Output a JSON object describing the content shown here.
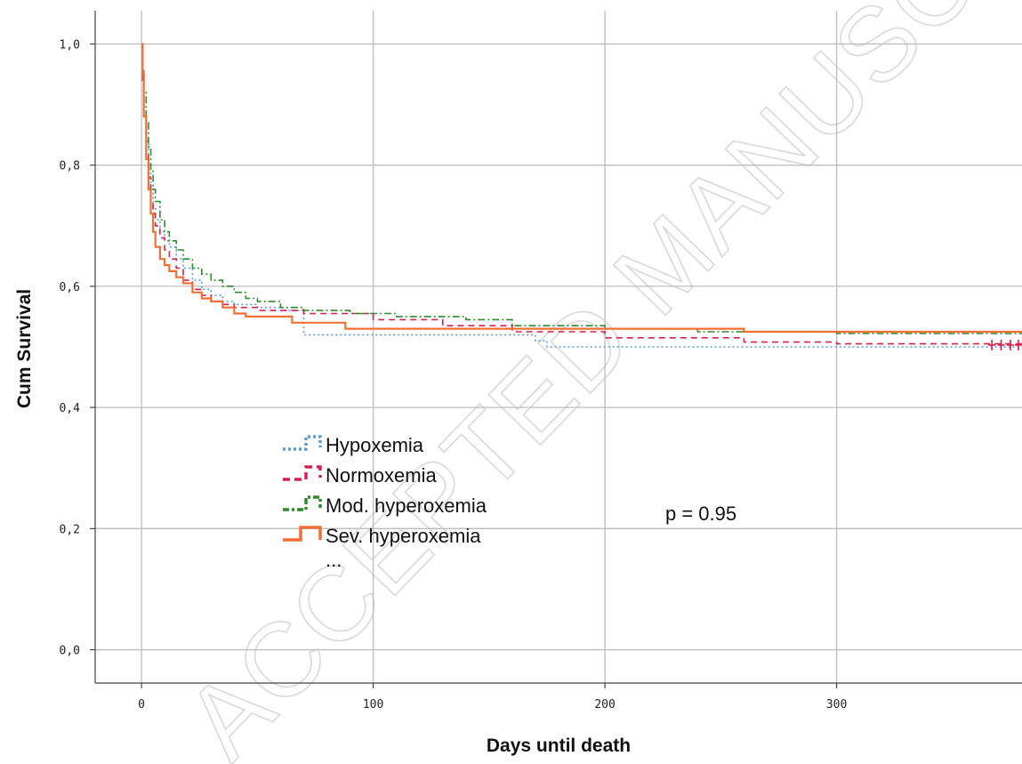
{
  "chart_data": {
    "type": "line",
    "title": "",
    "xlabel": "Days until death",
    "ylabel": "Cum Survival",
    "xlim": [
      -20,
      380
    ],
    "ylim": [
      -0.055,
      1.055
    ],
    "x_ticks": [
      0,
      100,
      200,
      300
    ],
    "x_tick_labels": [
      "0",
      "100",
      "200",
      "300"
    ],
    "y_ticks": [
      0.0,
      0.2,
      0.4,
      0.6,
      0.8,
      1.0
    ],
    "y_tick_labels": [
      "0,0",
      "0,2",
      "0,4",
      "0,6",
      "0,8",
      "1,0"
    ],
    "grid": true,
    "legend_position": "center-left",
    "legend_extra": "...",
    "annotation": "p = 0.95",
    "watermark": "ACCEPTED MANUSCRIPT",
    "series": [
      {
        "name": "Hypoxemia",
        "color": "#5b9bd5",
        "dash": "2,3",
        "width": 1.6,
        "censor": false,
        "points": [
          [
            0,
            1.0
          ],
          [
            0.5,
            0.95
          ],
          [
            1,
            0.89
          ],
          [
            2,
            0.84
          ],
          [
            3,
            0.8
          ],
          [
            4,
            0.76
          ],
          [
            5,
            0.73
          ],
          [
            6,
            0.71
          ],
          [
            8,
            0.69
          ],
          [
            10,
            0.675
          ],
          [
            12,
            0.665
          ],
          [
            15,
            0.645
          ],
          [
            18,
            0.63
          ],
          [
            22,
            0.61
          ],
          [
            26,
            0.595
          ],
          [
            30,
            0.585
          ],
          [
            35,
            0.575
          ],
          [
            40,
            0.57
          ],
          [
            50,
            0.565
          ],
          [
            60,
            0.56
          ],
          [
            70,
            0.52
          ],
          [
            100,
            0.52
          ],
          [
            165,
            0.52
          ],
          [
            170,
            0.51
          ],
          [
            175,
            0.5
          ],
          [
            250,
            0.5
          ],
          [
            320,
            0.5
          ],
          [
            380,
            0.5
          ]
        ]
      },
      {
        "name": "Normoxemia",
        "color": "#d6204e",
        "dash": "7,5",
        "width": 1.6,
        "censor": true,
        "censor_x": [
          367,
          371,
          375,
          380
        ],
        "censor_y": 0.503,
        "points": [
          [
            0,
            1.0
          ],
          [
            0.5,
            0.94
          ],
          [
            1,
            0.88
          ],
          [
            2,
            0.82
          ],
          [
            3,
            0.78
          ],
          [
            4,
            0.74
          ],
          [
            5,
            0.72
          ],
          [
            6,
            0.7
          ],
          [
            8,
            0.68
          ],
          [
            10,
            0.66
          ],
          [
            12,
            0.645
          ],
          [
            15,
            0.63
          ],
          [
            18,
            0.61
          ],
          [
            22,
            0.595
          ],
          [
            26,
            0.585
          ],
          [
            30,
            0.575
          ],
          [
            35,
            0.57
          ],
          [
            40,
            0.565
          ],
          [
            50,
            0.56
          ],
          [
            70,
            0.555
          ],
          [
            100,
            0.545
          ],
          [
            130,
            0.535
          ],
          [
            160,
            0.525
          ],
          [
            200,
            0.515
          ],
          [
            260,
            0.508
          ],
          [
            300,
            0.505
          ],
          [
            380,
            0.503
          ]
        ]
      },
      {
        "name": "Mod. hyperoxemia",
        "color": "#2e8b2e",
        "dash": "8,3,2,3",
        "width": 1.6,
        "censor": false,
        "points": [
          [
            0,
            1.0
          ],
          [
            0.5,
            0.96
          ],
          [
            1,
            0.92
          ],
          [
            2,
            0.87
          ],
          [
            3,
            0.83
          ],
          [
            4,
            0.79
          ],
          [
            5,
            0.76
          ],
          [
            6,
            0.74
          ],
          [
            8,
            0.71
          ],
          [
            10,
            0.69
          ],
          [
            12,
            0.675
          ],
          [
            15,
            0.66
          ],
          [
            18,
            0.645
          ],
          [
            22,
            0.63
          ],
          [
            26,
            0.62
          ],
          [
            30,
            0.61
          ],
          [
            35,
            0.6
          ],
          [
            40,
            0.59
          ],
          [
            45,
            0.58
          ],
          [
            50,
            0.575
          ],
          [
            60,
            0.565
          ],
          [
            70,
            0.56
          ],
          [
            90,
            0.555
          ],
          [
            110,
            0.55
          ],
          [
            140,
            0.545
          ],
          [
            160,
            0.535
          ],
          [
            200,
            0.53
          ],
          [
            240,
            0.525
          ],
          [
            300,
            0.522
          ],
          [
            380,
            0.522
          ]
        ]
      },
      {
        "name": "Sev. hyperoxemia",
        "color": "#f07033",
        "dash": "",
        "width": 2.2,
        "censor": false,
        "points": [
          [
            0,
            1.0
          ],
          [
            0.5,
            0.95
          ],
          [
            1,
            0.88
          ],
          [
            2,
            0.81
          ],
          [
            3,
            0.76
          ],
          [
            4,
            0.72
          ],
          [
            5,
            0.69
          ],
          [
            6,
            0.665
          ],
          [
            8,
            0.645
          ],
          [
            10,
            0.635
          ],
          [
            12,
            0.625
          ],
          [
            15,
            0.615
          ],
          [
            18,
            0.605
          ],
          [
            22,
            0.59
          ],
          [
            26,
            0.58
          ],
          [
            30,
            0.575
          ],
          [
            35,
            0.565
          ],
          [
            40,
            0.555
          ],
          [
            45,
            0.55
          ],
          [
            65,
            0.54
          ],
          [
            88,
            0.53
          ],
          [
            180,
            0.53
          ],
          [
            200,
            0.53
          ],
          [
            260,
            0.525
          ],
          [
            380,
            0.525
          ]
        ]
      }
    ]
  }
}
